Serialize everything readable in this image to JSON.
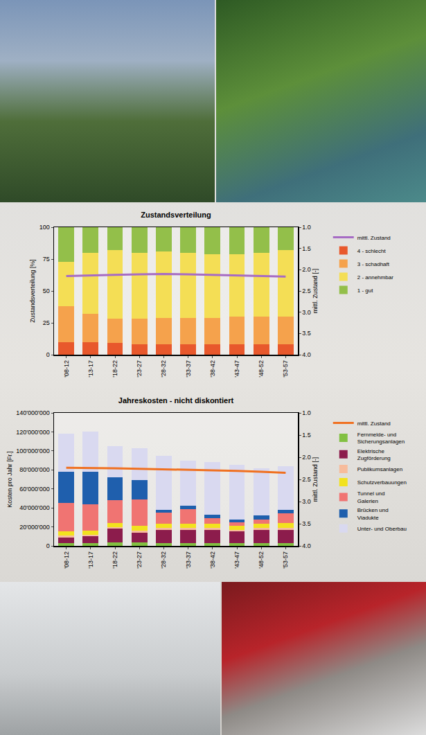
{
  "chart_data": [
    {
      "type": "bar",
      "title": "Zustandsverteilung",
      "ylabel": "Zustandsverteilung [%]",
      "y2label": "mittl. Zustand [-]",
      "categories": [
        "'08-12",
        "'13-17",
        "'18-22",
        "'23-27",
        "'28-32",
        "'33-37",
        "'38-42",
        "'43-47",
        "'48-52",
        "'53-57"
      ],
      "stacked": true,
      "grid": false,
      "legend": "right",
      "ylim": [
        0,
        100
      ],
      "yticks": [
        0,
        25,
        50,
        75,
        100
      ],
      "y2lim": [
        4,
        1
      ],
      "y2ticks": [
        {
          "value": 1,
          "label": "1.0"
        },
        {
          "value": 1.5,
          "label": "1.5"
        },
        {
          "value": 2,
          "label": "2.0"
        },
        {
          "value": 2.5,
          "label": "2.5"
        },
        {
          "value": 3,
          "label": "3.0"
        },
        {
          "value": 3.5,
          "label": "3.5"
        },
        {
          "value": 4,
          "label": "4.0"
        }
      ],
      "series": [
        {
          "name": "1 - gut",
          "color": "#93bf4a",
          "values": [
            27,
            20,
            18,
            20,
            19,
            20,
            21,
            21,
            20,
            18
          ]
        },
        {
          "name": "2 - annehmbar",
          "color": "#f4de55",
          "values": [
            35,
            48,
            54,
            52,
            52,
            51,
            50,
            49,
            50,
            52
          ]
        },
        {
          "name": "3 - schadhaft",
          "color": "#f5a24c",
          "values": [
            28,
            22,
            19,
            20,
            21,
            21,
            21,
            22,
            22,
            22
          ]
        },
        {
          "name": "4 - schlecht",
          "color": "#e8582c",
          "values": [
            10,
            10,
            9,
            8,
            8,
            8,
            8,
            8,
            8,
            8
          ]
        },
        {
          "name": "mittl. Zustand",
          "type": "line",
          "axis": "y2",
          "color": "#a66bc4",
          "values": [
            2.15,
            2.13,
            2.12,
            2.11,
            2.1,
            2.11,
            2.12,
            2.13,
            2.14,
            2.16
          ]
        }
      ]
    },
    {
      "type": "bar",
      "title": "Jahreskosten - nicht diskontiert",
      "ylabel": "Kosten pro Jahr [Fr.]",
      "y2label": "mittl. Zustand [-]",
      "categories": [
        "'08-12",
        "'13-17",
        "'18-22",
        "'23-27",
        "'28-32",
        "'33-37",
        "'38-42",
        "'43-47",
        "'48-52",
        "'53-57"
      ],
      "stacked": true,
      "grid": false,
      "legend": "right",
      "ylim": [
        0,
        140000000
      ],
      "yticks": [
        0,
        {
          "value": 20000000,
          "label": "20'000'000"
        },
        {
          "value": 40000000,
          "label": "40'000'000"
        },
        {
          "value": 60000000,
          "label": "60'000'000"
        },
        {
          "value": 80000000,
          "label": "80'000'000"
        },
        {
          "value": 100000000,
          "label": "100'000'000"
        },
        {
          "value": 120000000,
          "label": "120'000'000"
        },
        {
          "value": 140000000,
          "label": "140'000'000"
        }
      ],
      "y2lim": [
        4,
        1
      ],
      "y2ticks": [
        {
          "value": 1,
          "label": "1.0"
        },
        {
          "value": 1.5,
          "label": "1.5"
        },
        {
          "value": 2,
          "label": "2.0"
        },
        {
          "value": 2.5,
          "label": "2.5"
        },
        {
          "value": 3,
          "label": "3.0"
        },
        {
          "value": 3.5,
          "label": "3.5"
        },
        {
          "value": 4,
          "label": "4.0"
        }
      ],
      "series": [
        {
          "name": "Unter- und Oberbau",
          "color": "#d9d9f0",
          "values": [
            40000000,
            42000000,
            33000000,
            34000000,
            57000000,
            48000000,
            55000000,
            57000000,
            50000000,
            46000000
          ]
        },
        {
          "name": "Brücken und Viadukte",
          "color": "#1f5fad",
          "values": [
            33000000,
            34000000,
            24000000,
            20000000,
            3000000,
            3000000,
            4000000,
            3000000,
            4000000,
            4000000
          ]
        },
        {
          "name": "Tunnel und Galerien",
          "color": "#f07472",
          "values": [
            30000000,
            28000000,
            24000000,
            28000000,
            12000000,
            16000000,
            6000000,
            4000000,
            5000000,
            10000000
          ]
        },
        {
          "name": "Schutzverbauungen",
          "color": "#f2e21e",
          "values": [
            4000000,
            4000000,
            4000000,
            5000000,
            4000000,
            4000000,
            4000000,
            4000000,
            4000000,
            5000000
          ]
        },
        {
          "name": "Publikumsanlagen",
          "color": "#f7bc9c",
          "values": [
            2000000,
            2000000,
            2000000,
            2000000,
            2000000,
            2000000,
            2000000,
            2000000,
            2000000,
            2000000
          ]
        },
        {
          "name": "Elektrische Zugförderung",
          "color": "#8c1c4c",
          "values": [
            6000000,
            7000000,
            14000000,
            10000000,
            14000000,
            14000000,
            14000000,
            12000000,
            14000000,
            14000000
          ]
        },
        {
          "name": "Fernmelde- und Sicherungsanlagen",
          "color": "#82c042",
          "values": [
            3000000,
            3000000,
            4000000,
            4000000,
            3000000,
            3000000,
            3000000,
            3000000,
            3000000,
            3000000
          ]
        },
        {
          "name": "mittl. Zustand",
          "type": "line",
          "axis": "y2",
          "color": "#f07020",
          "values": [
            2.24,
            2.24,
            2.25,
            2.26,
            2.27,
            2.28,
            2.29,
            2.31,
            2.33,
            2.35
          ]
        }
      ]
    }
  ]
}
